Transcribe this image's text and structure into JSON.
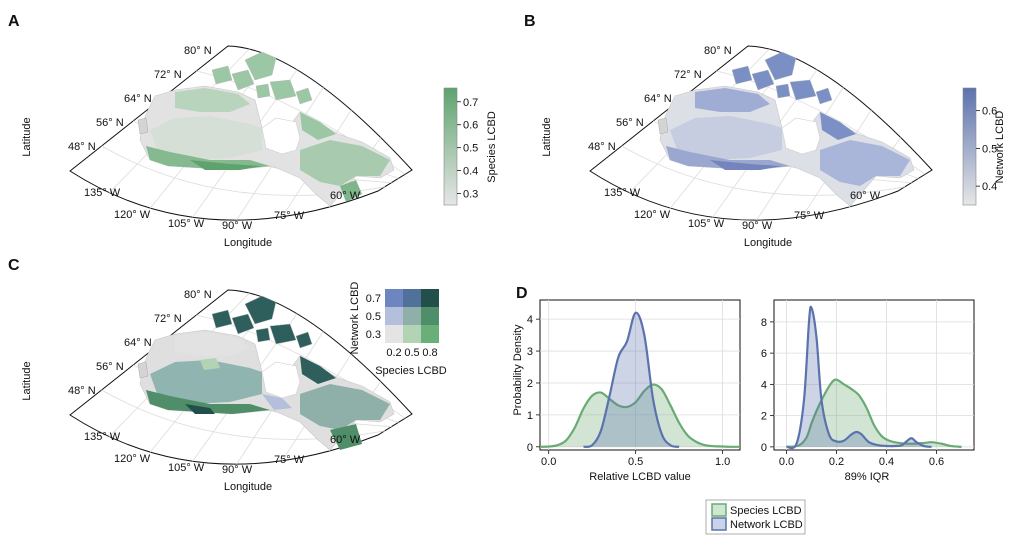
{
  "panels": {
    "a": "A",
    "b": "B",
    "c": "C",
    "d": "D"
  },
  "maps": {
    "latitude_label": "Latitude",
    "longitude_label": "Longitude",
    "lat_ticks": [
      "80° N",
      "72° N",
      "64° N",
      "56° N",
      "48° N"
    ],
    "lon_ticks": [
      "135° W",
      "120° W",
      "105° W",
      "90° W",
      "75° W",
      "60° W"
    ]
  },
  "colorbar_a": {
    "label": "Species LCBD",
    "ticks": [
      "0.3",
      "0.4",
      "0.5",
      "0.6",
      "0.7"
    ],
    "range": [
      0.25,
      0.76
    ],
    "color_low": "#e6e6e6",
    "color_high": "#5ea36e"
  },
  "colorbar_b": {
    "label": "Network LCBD",
    "ticks": [
      "0.4",
      "0.5",
      "0.6"
    ],
    "range": [
      0.35,
      0.66
    ],
    "color_low": "#e6e6e6",
    "color_high": "#5b72ad"
  },
  "bivariate": {
    "xlabel": "Species LCBD",
    "ylabel": "Network LCBD",
    "xticks": [
      "0.2",
      "0.5",
      "0.8"
    ],
    "yticks": [
      "0.3",
      "0.5",
      "0.7"
    ],
    "colors": [
      [
        "#e4e4e4",
        "#b2d4b5",
        "#6aae78"
      ],
      [
        "#b3bfdb",
        "#8fb0a8",
        "#4f8e68"
      ],
      [
        "#6d86c0",
        "#4f719a",
        "#234f4b"
      ]
    ]
  },
  "chart_data": [
    {
      "type": "area",
      "xlabel": "Relative LCBD value",
      "ylabel": "Probability Density",
      "xlim": [
        -0.05,
        1.1
      ],
      "ylim": [
        -0.1,
        4.6
      ],
      "xticks": [
        "0.0",
        "0.5",
        "1.0"
      ],
      "yticks": [
        "0",
        "1",
        "2",
        "3",
        "4"
      ],
      "series": [
        {
          "name": "Species LCBD",
          "color": "#6aaa73",
          "x": [
            -0.05,
            0.0,
            0.05,
            0.1,
            0.15,
            0.2,
            0.25,
            0.3,
            0.35,
            0.4,
            0.45,
            0.5,
            0.55,
            0.6,
            0.65,
            0.7,
            0.75,
            0.8,
            0.85,
            0.9,
            0.95,
            1.0,
            1.05,
            1.1
          ],
          "values": [
            0.0,
            0.01,
            0.05,
            0.2,
            0.6,
            1.2,
            1.6,
            1.7,
            1.5,
            1.3,
            1.25,
            1.4,
            1.75,
            1.95,
            1.8,
            1.3,
            0.75,
            0.35,
            0.15,
            0.05,
            0.02,
            0.01,
            0.0,
            0.0
          ]
        },
        {
          "name": "Network LCBD",
          "color": "#5b72ad",
          "x": [
            0.2,
            0.25,
            0.3,
            0.35,
            0.4,
            0.45,
            0.5,
            0.55,
            0.6,
            0.65,
            0.7,
            0.75
          ],
          "values": [
            0.0,
            0.05,
            0.5,
            1.6,
            2.8,
            3.3,
            4.2,
            3.5,
            1.5,
            0.4,
            0.05,
            0.0
          ]
        }
      ]
    },
    {
      "type": "area",
      "xlabel": "89% IQR",
      "ylabel": "",
      "xlim": [
        -0.05,
        0.75
      ],
      "ylim": [
        -0.2,
        9.4
      ],
      "xticks": [
        "0.0",
        "0.2",
        "0.4",
        "0.6"
      ],
      "yticks": [
        "0",
        "2",
        "4",
        "6",
        "8"
      ],
      "series": [
        {
          "name": "Species LCBD",
          "color": "#6aaa73",
          "x": [
            0.0,
            0.05,
            0.08,
            0.1,
            0.12,
            0.15,
            0.18,
            0.2,
            0.23,
            0.26,
            0.29,
            0.32,
            0.35,
            0.38,
            0.41,
            0.45,
            0.5,
            0.55,
            0.58,
            0.62,
            0.66,
            0.7
          ],
          "values": [
            0.0,
            0.1,
            0.6,
            1.5,
            2.3,
            3.3,
            4.1,
            4.3,
            4.0,
            3.7,
            3.3,
            2.5,
            1.4,
            0.7,
            0.4,
            0.25,
            0.2,
            0.25,
            0.3,
            0.2,
            0.05,
            0.0
          ]
        },
        {
          "name": "Network LCBD",
          "color": "#5b72ad",
          "x": [
            0.0,
            0.04,
            0.07,
            0.09,
            0.1,
            0.12,
            0.14,
            0.17,
            0.2,
            0.23,
            0.26,
            0.28,
            0.3,
            0.33,
            0.37,
            0.42,
            0.46,
            0.48,
            0.5,
            0.52,
            0.55,
            0.58
          ],
          "values": [
            0.0,
            0.2,
            3.0,
            8.0,
            8.9,
            7.0,
            3.0,
            0.8,
            0.35,
            0.4,
            0.8,
            0.95,
            0.8,
            0.3,
            0.1,
            0.05,
            0.1,
            0.35,
            0.55,
            0.3,
            0.05,
            0.0
          ]
        }
      ]
    }
  ],
  "legend": {
    "items": [
      {
        "label": "Species LCBD",
        "fill": "#cfe6d1",
        "stroke": "#6aaa73"
      },
      {
        "label": "Network LCBD",
        "fill": "#cbd3ea",
        "stroke": "#5b72ad"
      }
    ]
  }
}
